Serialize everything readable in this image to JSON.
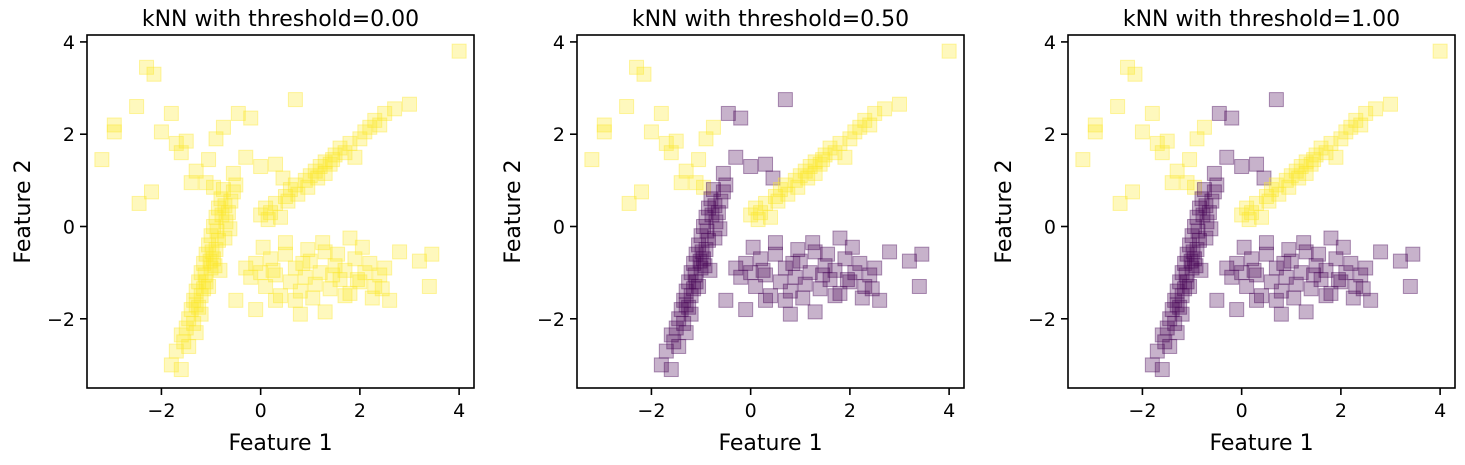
{
  "colors": {
    "class_yellow": "#fde725",
    "class_purple": "#440154",
    "axis": "#000000",
    "background": "#ffffff"
  },
  "marker": {
    "shape": "square",
    "alpha": 0.3
  },
  "chart_data": [
    {
      "type": "scatter",
      "title": "kNN with threshold=0.00",
      "xlabel": "Feature 1",
      "ylabel": "Feature 2",
      "xlim": [
        -3.5,
        4.3
      ],
      "ylim": [
        -3.5,
        4.15
      ],
      "xticks": [
        "−2",
        "0",
        "2",
        "4"
      ],
      "yticks": [
        "−2",
        "0",
        "2",
        "4"
      ],
      "grid": false,
      "threshold": 0.0,
      "class_0_count": 0,
      "class_1_count": "all points"
    },
    {
      "type": "scatter",
      "title": "kNN with threshold=0.50",
      "xlabel": "Feature 1",
      "ylabel": "Feature 2",
      "xlim": [
        -3.5,
        4.3
      ],
      "ylim": [
        -3.5,
        4.15
      ],
      "xticks": [
        "−2",
        "0",
        "2",
        "4"
      ],
      "yticks": [
        "−2",
        "0",
        "2",
        "4"
      ],
      "grid": false,
      "threshold": 0.5
    },
    {
      "type": "scatter",
      "title": "kNN with threshold=1.00",
      "xlabel": "Feature 1",
      "ylabel": "Feature 2",
      "xlim": [
        -3.5,
        4.3
      ],
      "ylim": [
        -3.5,
        4.15
      ],
      "xticks": [
        "−2",
        "0",
        "2",
        "4"
      ],
      "yticks": [
        "−2",
        "0",
        "2",
        "4"
      ],
      "grid": false,
      "threshold": 1.0
    }
  ],
  "points": {
    "scattered_upper_left": [
      [
        -3.2,
        1.45
      ],
      [
        -2.95,
        2.2
      ],
      [
        -2.95,
        2.05
      ],
      [
        -2.5,
        2.6
      ],
      [
        -2.3,
        3.45
      ],
      [
        -2.15,
        3.3
      ],
      [
        -2.45,
        0.5
      ],
      [
        -2.2,
        0.75
      ],
      [
        -2.0,
        2.05
      ],
      [
        -1.8,
        2.45
      ],
      [
        -1.7,
        1.8
      ],
      [
        -1.6,
        1.6
      ],
      [
        -1.5,
        1.85
      ],
      [
        -1.3,
        1.2
      ],
      [
        -1.05,
        1.45
      ],
      [
        -0.9,
        1.9
      ],
      [
        -0.75,
        2.15
      ],
      [
        -0.45,
        2.45
      ],
      [
        -0.2,
        2.35
      ],
      [
        -1.4,
        0.95
      ],
      [
        -1.1,
        0.95
      ],
      [
        -0.95,
        0.85
      ],
      [
        0.7,
        2.75
      ],
      [
        0.0,
        1.3
      ],
      [
        -0.3,
        1.5
      ],
      [
        -0.55,
        1.15
      ],
      [
        0.3,
        1.35
      ],
      [
        0.45,
        1.05
      ]
    ],
    "diagonal_upper_right": [
      [
        0.0,
        0.25
      ],
      [
        0.1,
        0.4
      ],
      [
        0.2,
        0.3
      ],
      [
        0.3,
        0.5
      ],
      [
        0.5,
        0.65
      ],
      [
        0.6,
        0.8
      ],
      [
        0.7,
        0.9
      ],
      [
        0.75,
        0.7
      ],
      [
        0.9,
        1.0
      ],
      [
        1.0,
        1.1
      ],
      [
        1.1,
        1.2
      ],
      [
        1.2,
        1.3
      ],
      [
        1.3,
        1.4
      ],
      [
        1.4,
        1.35
      ],
      [
        1.5,
        1.55
      ],
      [
        1.6,
        1.7
      ],
      [
        1.7,
        1.6
      ],
      [
        1.8,
        1.8
      ],
      [
        2.0,
        1.9
      ],
      [
        2.1,
        2.05
      ],
      [
        2.2,
        2.15
      ],
      [
        2.3,
        2.3
      ],
      [
        2.5,
        2.45
      ],
      [
        2.7,
        2.55
      ],
      [
        3.0,
        2.65
      ],
      [
        2.4,
        2.2
      ],
      [
        1.9,
        1.5
      ],
      [
        1.3,
        1.15
      ],
      [
        0.4,
        0.2
      ],
      [
        0.15,
        0.15
      ],
      [
        0.95,
        0.85
      ],
      [
        1.15,
        1.05
      ],
      [
        0.55,
        0.55
      ],
      [
        1.45,
        1.45
      ],
      [
        4.0,
        3.8
      ]
    ],
    "steep_band": [
      [
        -1.8,
        -3.0
      ],
      [
        -1.6,
        -3.1
      ],
      [
        -1.7,
        -2.7
      ],
      [
        -1.55,
        -2.5
      ],
      [
        -1.5,
        -2.2
      ],
      [
        -1.45,
        -2.0
      ],
      [
        -1.6,
        -2.35
      ],
      [
        -1.4,
        -1.8
      ],
      [
        -1.35,
        -1.6
      ],
      [
        -1.3,
        -1.4
      ],
      [
        -1.25,
        -1.2
      ],
      [
        -1.2,
        -1.0
      ],
      [
        -1.15,
        -0.8
      ],
      [
        -1.1,
        -0.6
      ],
      [
        -1.05,
        -0.4
      ],
      [
        -1.0,
        -0.2
      ],
      [
        -0.95,
        0.0
      ],
      [
        -0.9,
        0.2
      ],
      [
        -0.85,
        0.4
      ],
      [
        -0.8,
        0.6
      ],
      [
        -0.75,
        0.8
      ],
      [
        -1.3,
        -1.7
      ],
      [
        -1.2,
        -1.5
      ],
      [
        -1.1,
        -1.2
      ],
      [
        -1.0,
        -0.9
      ],
      [
        -0.9,
        -0.5
      ],
      [
        -1.45,
        -2.6
      ],
      [
        -1.3,
        -2.3
      ],
      [
        -1.2,
        -1.9
      ],
      [
        -1.05,
        -1.3
      ],
      [
        -0.95,
        -0.7
      ],
      [
        -0.85,
        -0.3
      ],
      [
        -0.7,
        0.1
      ],
      [
        -0.65,
        0.3
      ],
      [
        -0.6,
        0.55
      ],
      [
        -0.55,
        0.75
      ],
      [
        -0.5,
        0.9
      ],
      [
        -1.35,
        -2.1
      ],
      [
        -1.25,
        -1.75
      ],
      [
        -1.15,
        -1.35
      ],
      [
        -0.98,
        -0.55
      ],
      [
        -0.88,
        -0.1
      ],
      [
        -0.78,
        0.25
      ],
      [
        -0.72,
        -0.25
      ],
      [
        -0.62,
        -0.05
      ],
      [
        -1.12,
        -1.05
      ],
      [
        -1.02,
        -0.75
      ],
      [
        -0.92,
        -0.85
      ],
      [
        -0.82,
        -0.95
      ],
      [
        -0.72,
        0.45
      ]
    ],
    "horizontal_band": [
      [
        -0.5,
        -1.6
      ],
      [
        -0.3,
        -0.9
      ],
      [
        -0.2,
        -1.1
      ],
      [
        -0.1,
        -0.8
      ],
      [
        0.0,
        -1.0
      ],
      [
        0.1,
        -1.3
      ],
      [
        0.2,
        -0.7
      ],
      [
        0.3,
        -1.05
      ],
      [
        0.4,
        -1.5
      ],
      [
        0.5,
        -0.6
      ],
      [
        0.6,
        -1.2
      ],
      [
        0.7,
        -0.9
      ],
      [
        0.8,
        -1.4
      ],
      [
        0.9,
        -1.1
      ],
      [
        1.0,
        -0.75
      ],
      [
        1.1,
        -1.25
      ],
      [
        1.2,
        -1.0
      ],
      [
        1.3,
        -0.55
      ],
      [
        1.4,
        -1.35
      ],
      [
        1.5,
        -0.85
      ],
      [
        1.6,
        -1.15
      ],
      [
        1.7,
        -0.95
      ],
      [
        1.8,
        -1.45
      ],
      [
        1.9,
        -0.7
      ],
      [
        2.0,
        -1.2
      ],
      [
        2.1,
        -1.0
      ],
      [
        2.2,
        -0.8
      ],
      [
        2.3,
        -1.3
      ],
      [
        2.4,
        -1.05
      ],
      [
        2.5,
        -0.9
      ],
      [
        2.6,
        -1.6
      ],
      [
        2.8,
        -0.55
      ],
      [
        3.2,
        -0.75
      ],
      [
        3.4,
        -1.3
      ],
      [
        3.45,
        -0.6
      ],
      [
        -0.1,
        -1.8
      ],
      [
        0.3,
        -1.6
      ],
      [
        0.8,
        -1.9
      ],
      [
        1.3,
        -1.85
      ],
      [
        1.7,
        -1.5
      ],
      [
        2.25,
        -1.55
      ],
      [
        0.5,
        -0.35
      ],
      [
        1.25,
        -0.35
      ],
      [
        1.8,
        -0.25
      ],
      [
        0.05,
        -0.45
      ],
      [
        0.95,
        -0.5
      ],
      [
        1.55,
        -0.6
      ],
      [
        2.05,
        -0.45
      ],
      [
        0.7,
        -1.6
      ],
      [
        1.05,
        -1.55
      ],
      [
        2.45,
        -1.35
      ],
      [
        1.95,
        -1.15
      ],
      [
        0.25,
        -0.95
      ],
      [
        1.45,
        -1.05
      ],
      [
        0.85,
        -0.8
      ]
    ]
  },
  "panel_coloring": [
    {
      "scattered_upper_left": "yellow",
      "diagonal_upper_right": "yellow",
      "steep_band": "yellow",
      "horizontal_band": "yellow"
    },
    {
      "scattered_upper_left": "mixed",
      "diagonal_upper_right": "yellow",
      "steep_band": "purple",
      "horizontal_band": "purple"
    },
    {
      "scattered_upper_left": "mixed",
      "diagonal_upper_right": "yellow",
      "steep_band": "purple",
      "horizontal_band": "purple"
    }
  ]
}
